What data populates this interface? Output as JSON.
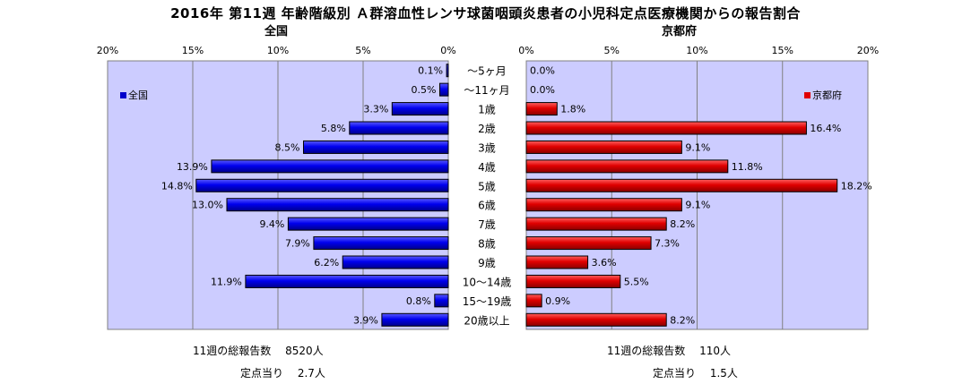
{
  "title": "2016年 第11週 年齢階級別 Ａ群溶血性レンサ球菌咽頭炎患者の小児科定点医療機関からの報告割合",
  "chart_data": [
    {
      "type": "bar",
      "subtitle": "全国",
      "legend": "全国",
      "legend_position": "top-left",
      "orientation": "horizontal",
      "direction": "right-to-left",
      "xlim": [
        0,
        20
      ],
      "ticks": [
        "20%",
        "15%",
        "10%",
        "5%",
        "0%"
      ],
      "tick_values": [
        20,
        15,
        10,
        5,
        0
      ],
      "color": "#0000cc",
      "categories": [
        "～5ヶ月",
        "～11ヶ月",
        "1歳",
        "2歳",
        "3歳",
        "4歳",
        "5歳",
        "6歳",
        "7歳",
        "8歳",
        "9歳",
        "10～14歳",
        "15～19歳",
        "20歳以上"
      ],
      "values": [
        0.1,
        0.5,
        3.3,
        5.8,
        8.5,
        13.9,
        14.8,
        13.0,
        9.4,
        7.9,
        6.2,
        11.9,
        0.8,
        3.9
      ],
      "labels": [
        "0.1%",
        "0.5%",
        "3.3%",
        "5.8%",
        "8.5%",
        "13.9%",
        "14.8%",
        "13.0%",
        "9.4%",
        "7.9%",
        "6.2%",
        "11.9%",
        "0.8%",
        "3.9%"
      ],
      "grid": true
    },
    {
      "type": "bar",
      "subtitle": "京都府",
      "legend": "京都府",
      "legend_position": "top-right",
      "orientation": "horizontal",
      "direction": "left-to-right",
      "xlim": [
        0,
        20
      ],
      "ticks": [
        "0%",
        "5%",
        "10%",
        "15%",
        "20%"
      ],
      "tick_values": [
        0,
        5,
        10,
        15,
        20
      ],
      "color": "#e00000",
      "categories": [
        "～5ヶ月",
        "～11ヶ月",
        "1歳",
        "2歳",
        "3歳",
        "4歳",
        "5歳",
        "6歳",
        "7歳",
        "8歳",
        "9歳",
        "10～14歳",
        "15～19歳",
        "20歳以上"
      ],
      "values": [
        0.0,
        0.0,
        1.8,
        16.4,
        9.1,
        11.8,
        18.2,
        9.1,
        8.2,
        7.3,
        3.6,
        5.5,
        0.9,
        8.2
      ],
      "labels": [
        "0.0%",
        "0.0%",
        "1.8%",
        "16.4%",
        "9.1%",
        "11.8%",
        "18.2%",
        "9.1%",
        "8.2%",
        "7.3%",
        "3.6%",
        "5.5%",
        "0.9%",
        "8.2%"
      ],
      "grid": true
    }
  ],
  "footer": {
    "left_total": "11週の総報告数　 8520人",
    "left_per": "定点当り　 2.7人",
    "right_total": "11週の総報告数　 110人",
    "right_per": "定点当り　 1.5人"
  }
}
